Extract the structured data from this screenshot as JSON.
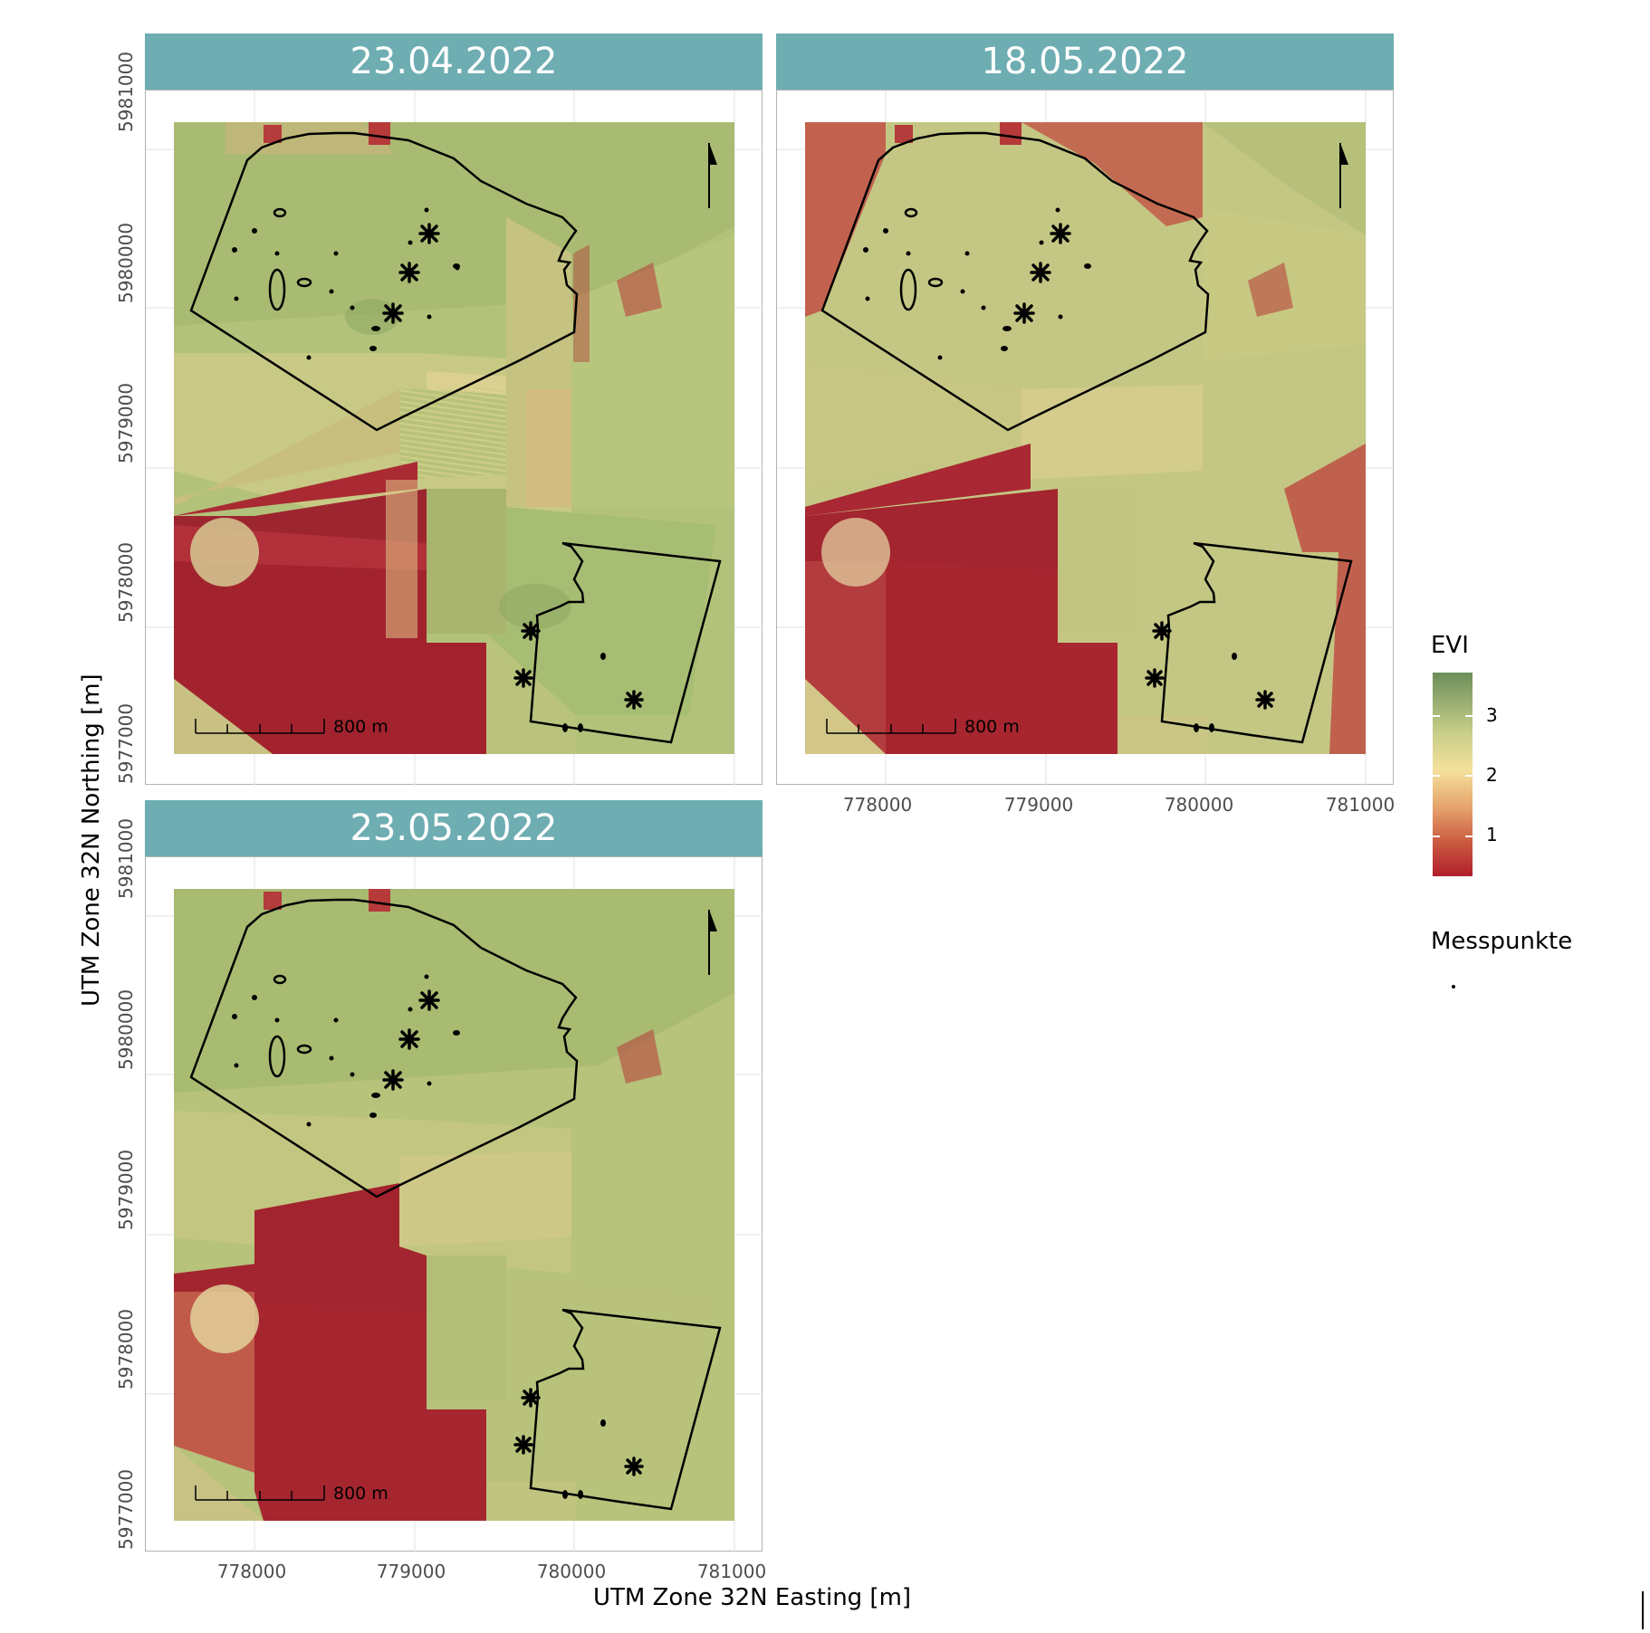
{
  "panels": [
    {
      "date": "23.04.2022"
    },
    {
      "date": "18.05.2022"
    },
    {
      "date": "23.05.2022"
    }
  ],
  "axes": {
    "x_title": "UTM Zone 32N Easting [m]",
    "y_title": "UTM Zone 32N Northing [m]",
    "x_ticks": [
      "778000",
      "779000",
      "780000",
      "781000"
    ],
    "y_ticks": [
      "5977000",
      "5978000",
      "5979000",
      "5980000",
      "5981000"
    ]
  },
  "scalebar": {
    "label": "800 m"
  },
  "legend": {
    "evi_title": "EVI",
    "evi_ticks": [
      "3",
      "2",
      "1"
    ],
    "points_title": "Messpunkte",
    "colors": {
      "high": "#6b8f5a",
      "mid": "#f4e09a",
      "low": "#b11e2b"
    }
  }
}
